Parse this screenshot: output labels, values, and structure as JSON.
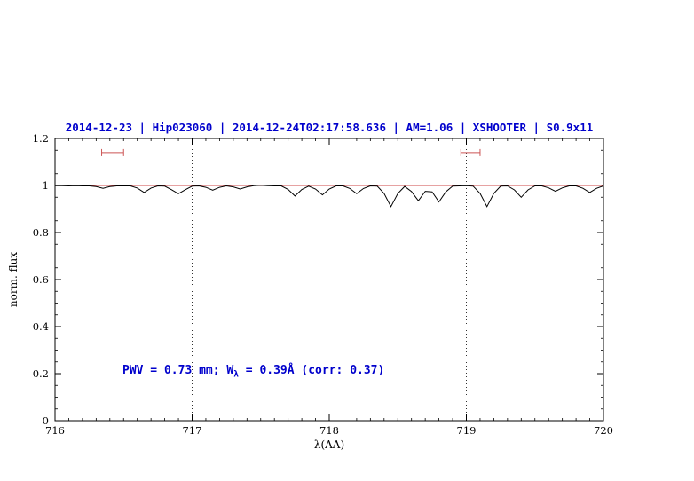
{
  "header": {
    "title": "2014-12-23 | Hip023060 | 2014-12-24T02:17:58.636 | AM=1.06 | XSHOOTER | S0.9x11"
  },
  "annotation": {
    "pre": "PWV = 0.73 mm; W",
    "sub": "λ",
    "post": " = 0.39Å (corr: 0.37)"
  },
  "chart_data": {
    "type": "line",
    "title": "2014-12-23 | Hip023060 | 2014-12-24T02:17:58.636 | AM=1.06 | XSHOOTER | S0.9x11",
    "xlabel": "λ(AA)",
    "ylabel": "norm. flux",
    "xlim": [
      716,
      720
    ],
    "ylim": [
      0,
      1.2
    ],
    "xticks": [
      716,
      717,
      718,
      719,
      720
    ],
    "xtick_labels": [
      "716",
      "717",
      "718",
      "719",
      "720"
    ],
    "yticks": [
      0,
      0.2,
      0.4,
      0.6,
      0.8,
      1,
      1.2
    ],
    "ytick_labels": [
      "0",
      "0.2",
      "0.4",
      "0.6",
      "0.8",
      "1",
      "1.2"
    ],
    "minor_x_step": 0.1,
    "minor_y_step": 0.05,
    "grid": false,
    "legend": "none",
    "dotted_vlines": [
      717,
      719
    ],
    "annotation": {
      "text": "PWV = 0.73 mm; Wλ = 0.39Å (corr: 0.37)",
      "x": 716.5,
      "y": 0.2
    },
    "range_markers": [
      {
        "x1": 716.34,
        "x2": 716.5,
        "y": 1.14
      },
      {
        "x1": 718.96,
        "x2": 719.1,
        "y": 1.14
      }
    ],
    "colors": {
      "title": "#0000cc",
      "annotation": "#0000cc",
      "axis": "#000000",
      "spectrum": "#000000",
      "model": "#cc4444",
      "marker": "#cc5555"
    },
    "series": [
      {
        "name": "observed-spectrum",
        "color": "#000000",
        "x": [
          716,
          716.05,
          716.1,
          716.15,
          716.2,
          716.25,
          716.3,
          716.35,
          716.4,
          716.45,
          716.5,
          716.55,
          716.6,
          716.65,
          716.7,
          716.75,
          716.8,
          716.85,
          716.9,
          716.95,
          717,
          717.05,
          717.1,
          717.15,
          717.2,
          717.25,
          717.3,
          717.35,
          717.4,
          717.45,
          717.5,
          717.55,
          717.6,
          717.65,
          717.7,
          717.75,
          717.8,
          717.85,
          717.9,
          717.95,
          718,
          718.05,
          718.1,
          718.15,
          718.2,
          718.25,
          718.3,
          718.35,
          718.4,
          718.45,
          718.5,
          718.55,
          718.6,
          718.65,
          718.7,
          718.75,
          718.8,
          718.85,
          718.9,
          718.95,
          719,
          719.05,
          719.1,
          719.15,
          719.2,
          719.25,
          719.3,
          719.35,
          719.4,
          719.45,
          719.5,
          719.55,
          719.6,
          719.65,
          719.7,
          719.75,
          719.8,
          719.85,
          719.9,
          719.95,
          720
        ],
        "y": [
          0.999,
          0.999,
          0.998,
          0.999,
          0.998,
          0.998,
          0.995,
          0.988,
          0.995,
          0.998,
          0.998,
          0.998,
          0.989,
          0.97,
          0.989,
          0.998,
          0.997,
          0.982,
          0.965,
          0.982,
          0.997,
          0.998,
          0.992,
          0.98,
          0.992,
          0.998,
          0.994,
          0.985,
          0.994,
          0.999,
          1.001,
          0.999,
          0.998,
          0.998,
          0.983,
          0.955,
          0.983,
          0.997,
          0.985,
          0.96,
          0.985,
          0.998,
          0.998,
          0.987,
          0.965,
          0.987,
          0.998,
          0.997,
          0.966,
          0.91,
          0.966,
          0.996,
          0.974,
          0.935,
          0.975,
          0.973,
          0.93,
          0.973,
          0.997,
          0.998,
          0.999,
          0.997,
          0.966,
          0.91,
          0.966,
          0.997,
          0.998,
          0.981,
          0.95,
          0.981,
          0.998,
          0.998,
          0.99,
          0.975,
          0.99,
          0.998,
          0.998,
          0.988,
          0.97,
          0.988,
          0.998
        ]
      },
      {
        "name": "telluric-model",
        "color": "#cc4444",
        "x": [
          716,
          720
        ],
        "y": [
          1.0,
          1.0
        ]
      }
    ]
  }
}
